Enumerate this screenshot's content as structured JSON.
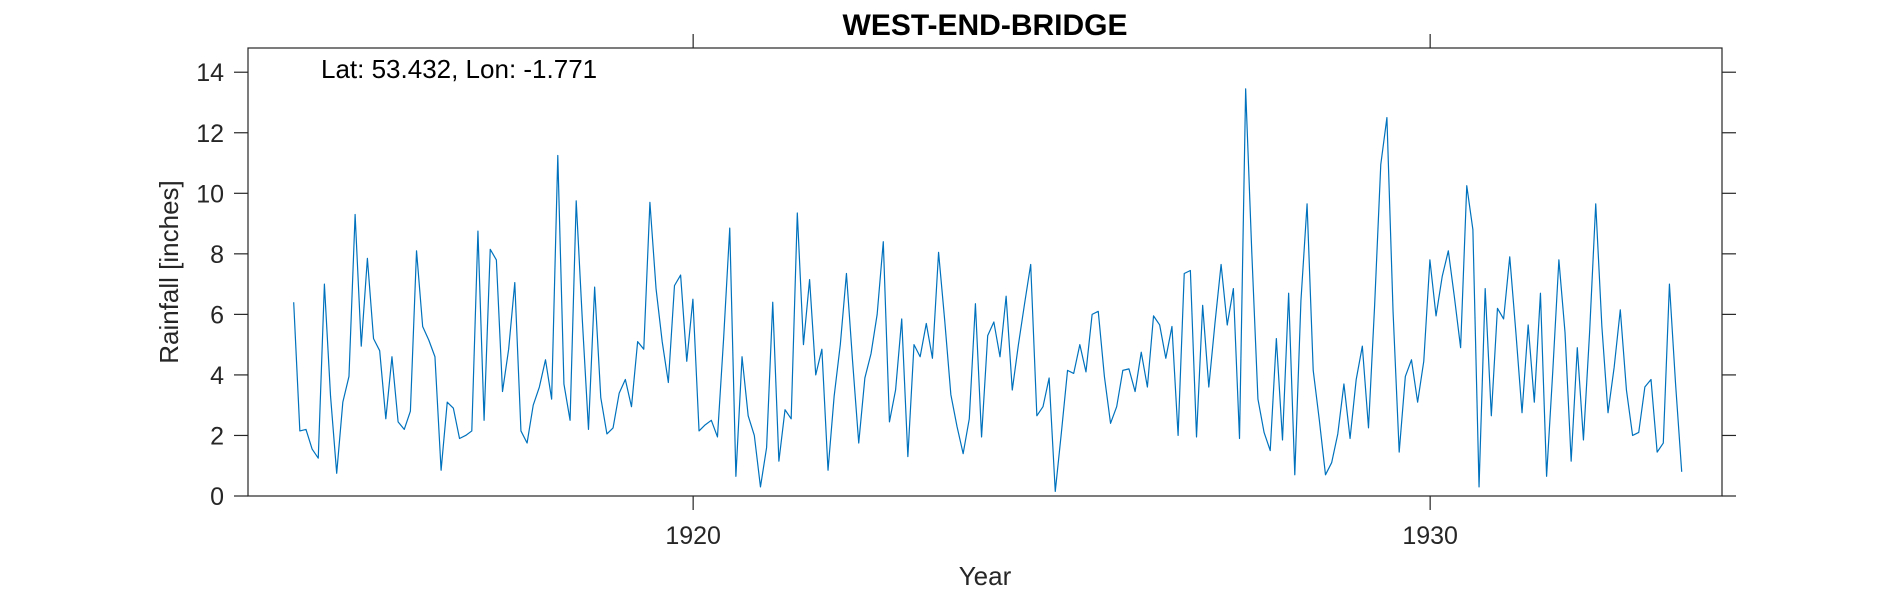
{
  "chart_data": {
    "type": "line",
    "title": "WEST-END-BRIDGE",
    "xlabel": "Year",
    "ylabel": "Rainfall [inches]",
    "annotation": "Lat: 53.432, Lon: -1.771",
    "xlim": [
      1913.96,
      1933.96
    ],
    "ylim": [
      0,
      14.8
    ],
    "xticks": [
      1920,
      1930
    ],
    "xtick_labels": [
      "1920",
      "1930"
    ],
    "yticks": [
      0,
      2,
      4,
      6,
      8,
      10,
      12,
      14
    ],
    "ytick_labels": [
      "0",
      "2",
      "4",
      "6",
      "8",
      "10",
      "12",
      "14"
    ],
    "grid": false,
    "line_color": "#0072BD",
    "x_start": 1914.58,
    "x_step_months": 1,
    "values": [
      6.4,
      2.15,
      2.2,
      1.55,
      1.25,
      7.0,
      3.3,
      0.75,
      3.1,
      3.95,
      9.3,
      4.95,
      7.85,
      5.2,
      4.8,
      2.55,
      4.6,
      2.45,
      2.2,
      2.8,
      8.1,
      5.6,
      5.15,
      4.6,
      0.85,
      3.1,
      2.9,
      1.9,
      2.0,
      2.15,
      8.75,
      2.5,
      8.15,
      7.8,
      3.45,
      4.85,
      7.05,
      2.15,
      1.75,
      3.0,
      3.6,
      4.5,
      3.2,
      11.25,
      3.7,
      2.5,
      9.75,
      5.8,
      2.2,
      6.9,
      3.25,
      2.05,
      2.25,
      3.4,
      3.85,
      2.95,
      5.1,
      4.85,
      9.7,
      6.85,
      5.1,
      3.75,
      6.95,
      7.3,
      4.45,
      6.5,
      2.15,
      2.35,
      2.5,
      1.95,
      5.2,
      8.85,
      0.65,
      4.6,
      2.65,
      2.0,
      0.3,
      1.6,
      6.4,
      1.15,
      2.85,
      2.55,
      9.35,
      5.0,
      7.15,
      4.0,
      4.85,
      0.85,
      3.3,
      5.0,
      7.35,
      4.45,
      1.75,
      3.9,
      4.7,
      6.0,
      8.4,
      2.45,
      3.5,
      5.85,
      1.3,
      5.0,
      4.6,
      5.7,
      4.55,
      8.05,
      5.8,
      3.35,
      2.3,
      1.4,
      2.55,
      6.35,
      1.95,
      5.3,
      5.75,
      4.6,
      6.6,
      3.5,
      5.0,
      6.35,
      7.65,
      2.65,
      2.95,
      3.9,
      0.15,
      2.1,
      4.15,
      4.05,
      5.0,
      4.1,
      6.0,
      6.1,
      3.95,
      2.4,
      2.95,
      4.15,
      4.2,
      3.45,
      4.75,
      3.6,
      5.95,
      5.65,
      4.55,
      5.6,
      2.0,
      7.35,
      7.45,
      1.95,
      6.3,
      3.6,
      5.7,
      7.65,
      5.65,
      6.85,
      1.9,
      13.45,
      8.05,
      3.2,
      2.1,
      1.5,
      5.2,
      1.85,
      6.7,
      0.7,
      6.45,
      9.65,
      4.15,
      2.5,
      0.7,
      1.1,
      2.05,
      3.7,
      1.9,
      3.85,
      4.95,
      2.25,
      6.3,
      10.95,
      12.5,
      6.1,
      1.45,
      3.95,
      4.5,
      3.1,
      4.45,
      7.8,
      5.95,
      7.25,
      8.1,
      6.55,
      4.9,
      10.25,
      8.8,
      0.3,
      6.85,
      2.65,
      6.2,
      5.85,
      7.9,
      5.4,
      2.75,
      5.65,
      3.1,
      6.7,
      0.65,
      4.1,
      7.8,
      5.4,
      1.15,
      4.9,
      1.85,
      5.4,
      9.65,
      5.6,
      2.75,
      4.25,
      6.15,
      3.5,
      2.0,
      2.1,
      3.6,
      3.85,
      1.45,
      1.75,
      7.0,
      3.7,
      0.8
    ]
  }
}
